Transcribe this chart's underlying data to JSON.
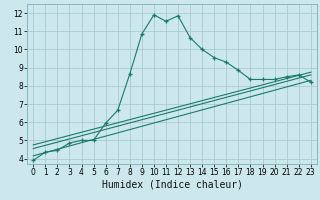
{
  "title": "",
  "xlabel": "Humidex (Indice chaleur)",
  "bg_color": "#cce8ec",
  "grid_color": "#aacccc",
  "line_color": "#1a7a6a",
  "xlim": [
    -0.5,
    23.5
  ],
  "ylim": [
    3.7,
    12.5
  ],
  "xticks": [
    0,
    1,
    2,
    3,
    4,
    5,
    6,
    7,
    8,
    9,
    10,
    11,
    12,
    13,
    14,
    15,
    16,
    17,
    18,
    19,
    20,
    21,
    22,
    23
  ],
  "yticks": [
    4,
    5,
    6,
    7,
    8,
    9,
    10,
    11,
    12
  ],
  "curve1_x": [
    0,
    1,
    2,
    3,
    4,
    5,
    6,
    7,
    8,
    9,
    10,
    11,
    12,
    13,
    14,
    15,
    16,
    17,
    18,
    19,
    20,
    21,
    22,
    23
  ],
  "curve1_y": [
    3.9,
    4.35,
    4.45,
    4.85,
    5.0,
    5.0,
    5.95,
    6.65,
    8.65,
    10.85,
    11.9,
    11.55,
    11.85,
    10.65,
    10.0,
    9.55,
    9.3,
    8.85,
    8.35,
    8.35,
    8.35,
    8.5,
    8.6,
    8.2
  ],
  "curve2_x": [
    0,
    23
  ],
  "curve2_y": [
    4.15,
    8.3
  ],
  "curve3_x": [
    0,
    23
  ],
  "curve3_y": [
    4.55,
    8.6
  ],
  "curve4_x": [
    0,
    23
  ],
  "curve4_y": [
    4.75,
    8.75
  ],
  "xlabel_fontsize": 7,
  "tick_fontsize": 5.5
}
